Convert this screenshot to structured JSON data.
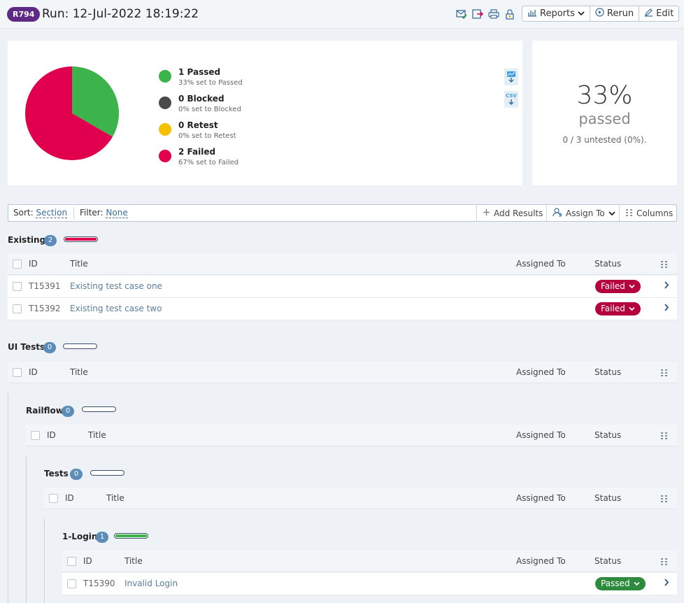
{
  "header": {
    "run_id": "R794",
    "title": "Run: 12-Jul-2022 18:19:22",
    "reports_label": "Reports",
    "rerun_label": "Rerun",
    "edit_label": "Edit"
  },
  "summary": {
    "legend": [
      {
        "title": "1 Passed",
        "sub": "33% set to Passed",
        "color": "#3cb44b"
      },
      {
        "title": "0 Blocked",
        "sub": "0% set to Blocked",
        "color": "#4a4a4a"
      },
      {
        "title": "0 Retest",
        "sub": "0% set to Retest",
        "color": "#f5c000"
      },
      {
        "title": "2 Failed",
        "sub": "67% set to Failed",
        "color": "#e0004d"
      }
    ],
    "pie": [
      {
        "name": "Passed",
        "value": 1,
        "color": "#3cb44b"
      },
      {
        "name": "Failed",
        "value": 2,
        "color": "#e0004d"
      }
    ],
    "csv_label": "CSV",
    "percent": "33%",
    "percent_word": "passed",
    "untested": "0 / 3 untested (0%)."
  },
  "toolbar": {
    "sort_label": "Sort:",
    "sort_value": "Section",
    "filter_label": "Filter:",
    "filter_value": "None",
    "add_results": "Add Results",
    "assign_to": "Assign To",
    "columns": "Columns"
  },
  "columns": {
    "id": "ID",
    "title": "Title",
    "assigned": "Assigned To",
    "status": "Status"
  },
  "sections": {
    "existing": {
      "name": "Existing",
      "count": "2",
      "progress_fraction": 1.0,
      "progress_color": "#e0004d",
      "rows": [
        {
          "id": "T15391",
          "title": "Existing test case one",
          "status": "Failed",
          "status_color": "#b5003e"
        },
        {
          "id": "T15392",
          "title": "Existing test case two",
          "status": "Failed",
          "status_color": "#b5003e"
        }
      ]
    },
    "ui_tests": {
      "name": "UI Tests",
      "count": "0",
      "progress_fraction": 0
    },
    "railflow": {
      "name": "Railflow",
      "count": "0",
      "progress_fraction": 0
    },
    "tests": {
      "name": "Tests",
      "count": "0",
      "progress_fraction": 0
    },
    "login": {
      "name": "1-Login",
      "count": "1",
      "progress_fraction": 1.0,
      "progress_color": "#3cb44b",
      "rows": [
        {
          "id": "T15390",
          "title": "Invalid Login",
          "status": "Passed",
          "status_color": "#2e8b3e"
        }
      ]
    }
  },
  "icons": [
    "mail-check-icon",
    "export-icon",
    "print-icon",
    "lock-icon",
    "bar-chart-icon",
    "play-circle-icon",
    "pencil-icon",
    "plus-icon",
    "assign-user-icon",
    "columns-icon",
    "chevron-down-icon",
    "chevron-right-icon",
    "download-chart-icon",
    "download-csv-icon"
  ]
}
